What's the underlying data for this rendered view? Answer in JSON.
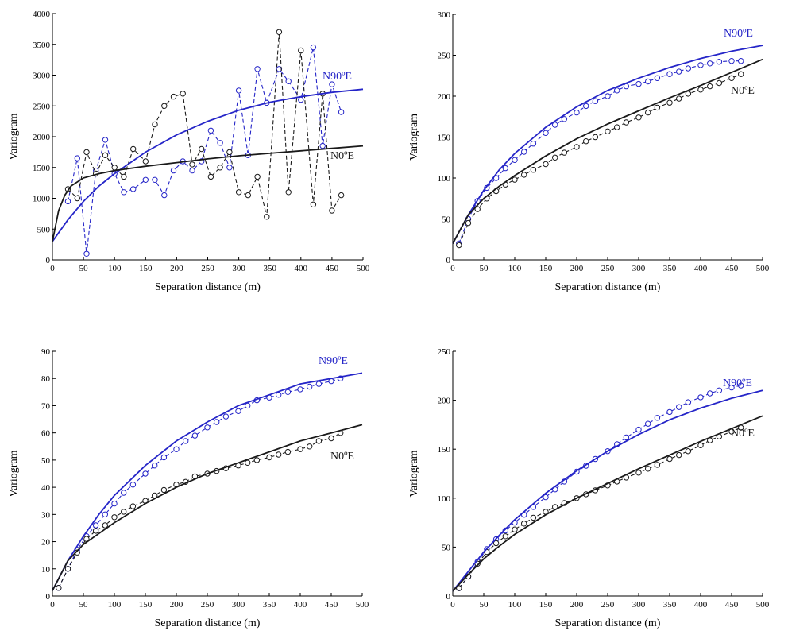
{
  "colors": {
    "n90e": "#2525c8",
    "n0e": "#1a1a1a",
    "axis": "#000000"
  },
  "chart_data": [
    {
      "type": "line",
      "xlabel": "Separation distance (m)",
      "ylabel": "Variogram",
      "xlim": [
        0,
        500
      ],
      "ylim": [
        0,
        4000
      ],
      "xticks": [
        "0",
        "50",
        "100",
        "150",
        "200",
        "250",
        "300",
        "350",
        "400",
        "450",
        "500"
      ],
      "yticks": [
        "0",
        "500",
        "1000",
        "1500",
        "2000",
        "2500",
        "3000",
        "3500",
        "4000"
      ],
      "series": [
        {
          "name": "N90ºE",
          "role": "experimental",
          "color": "#2525c8",
          "marker": "circle",
          "dashed": true,
          "x": [
            25,
            40,
            55,
            70,
            85,
            100,
            115,
            130,
            150,
            165,
            180,
            195,
            210,
            225,
            240,
            255,
            270,
            285,
            300,
            315,
            330,
            345,
            365,
            380,
            400,
            420,
            435,
            450,
            465
          ],
          "y": [
            950,
            1650,
            100,
            1450,
            1950,
            1400,
            1100,
            1150,
            1300,
            1300,
            1050,
            1450,
            1600,
            1450,
            1600,
            2100,
            1900,
            1500,
            2750,
            1700,
            3100,
            2550,
            3100,
            2900,
            2600,
            3450,
            1850,
            2850,
            2400
          ]
        },
        {
          "name": "N0ºE",
          "role": "experimental",
          "color": "#1a1a1a",
          "marker": "circle",
          "dashed": true,
          "x": [
            25,
            40,
            55,
            70,
            85,
            100,
            115,
            130,
            150,
            165,
            180,
            195,
            210,
            225,
            240,
            255,
            270,
            285,
            300,
            315,
            330,
            345,
            365,
            380,
            400,
            420,
            435,
            450,
            465
          ],
          "y": [
            1150,
            1000,
            1750,
            1400,
            1700,
            1500,
            1350,
            1800,
            1600,
            2200,
            2500,
            2650,
            2700,
            1550,
            1800,
            1350,
            1500,
            1750,
            1100,
            1050,
            1350,
            700,
            3700,
            1100,
            3400,
            900,
            2700,
            800,
            1050
          ]
        },
        {
          "name": "N90ºE",
          "role": "model",
          "color": "#2525c8",
          "x": [
            0,
            25,
            50,
            75,
            100,
            150,
            200,
            250,
            300,
            350,
            400,
            450,
            500
          ],
          "y": [
            300,
            650,
            950,
            1200,
            1400,
            1750,
            2030,
            2250,
            2430,
            2560,
            2650,
            2720,
            2770
          ]
        },
        {
          "name": "N0ºE",
          "role": "model",
          "color": "#1a1a1a",
          "x": [
            0,
            10,
            20,
            30,
            50,
            75,
            100,
            150,
            200,
            250,
            300,
            350,
            400,
            450,
            500
          ],
          "y": [
            300,
            800,
            1050,
            1200,
            1330,
            1400,
            1450,
            1520,
            1580,
            1640,
            1690,
            1730,
            1770,
            1810,
            1850
          ]
        }
      ]
    },
    {
      "type": "line",
      "xlabel": "Separation distance (m)",
      "ylabel": "Variogram",
      "xlim": [
        0,
        500
      ],
      "ylim": [
        0,
        300
      ],
      "xticks": [
        "0",
        "50",
        "100",
        "150",
        "200",
        "250",
        "300",
        "350",
        "400",
        "450",
        "500"
      ],
      "yticks": [
        "0",
        "50",
        "100",
        "150",
        "200",
        "250",
        "300"
      ],
      "series": [
        {
          "name": "N90ºE",
          "role": "experimental",
          "color": "#2525c8",
          "marker": "circle",
          "dashed": true,
          "x": [
            10,
            25,
            40,
            55,
            70,
            85,
            100,
            115,
            130,
            150,
            165,
            180,
            200,
            215,
            230,
            250,
            265,
            280,
            300,
            315,
            330,
            350,
            365,
            380,
            400,
            415,
            430,
            450,
            465
          ],
          "y": [
            20,
            50,
            72,
            88,
            100,
            112,
            122,
            132,
            142,
            155,
            165,
            172,
            180,
            188,
            194,
            200,
            207,
            212,
            215,
            218,
            222,
            227,
            230,
            234,
            238,
            240,
            242,
            243,
            243
          ]
        },
        {
          "name": "N0ºE",
          "role": "experimental",
          "color": "#1a1a1a",
          "marker": "circle",
          "dashed": true,
          "x": [
            10,
            25,
            40,
            55,
            70,
            85,
            100,
            115,
            130,
            150,
            165,
            180,
            200,
            215,
            230,
            250,
            265,
            280,
            300,
            315,
            330,
            350,
            365,
            380,
            400,
            415,
            430,
            450,
            465
          ],
          "y": [
            18,
            45,
            62,
            75,
            84,
            92,
            98,
            104,
            110,
            117,
            125,
            131,
            138,
            145,
            150,
            157,
            162,
            168,
            174,
            180,
            186,
            192,
            197,
            203,
            208,
            212,
            216,
            222,
            227
          ]
        },
        {
          "name": "N90ºE",
          "role": "model",
          "color": "#2525c8",
          "x": [
            0,
            25,
            50,
            75,
            100,
            150,
            200,
            250,
            300,
            350,
            400,
            450,
            500
          ],
          "y": [
            20,
            55,
            85,
            110,
            130,
            162,
            187,
            207,
            222,
            235,
            246,
            255,
            262
          ]
        },
        {
          "name": "N0ºE",
          "role": "model",
          "color": "#1a1a1a",
          "x": [
            0,
            25,
            50,
            75,
            100,
            150,
            200,
            250,
            300,
            350,
            400,
            450,
            500
          ],
          "y": [
            20,
            55,
            75,
            90,
            103,
            127,
            148,
            166,
            182,
            198,
            213,
            229,
            245
          ]
        }
      ]
    },
    {
      "type": "line",
      "xlabel": "Separation distance (m)",
      "ylabel": "Variogram",
      "xlim": [
        0,
        500
      ],
      "ylim": [
        0,
        90
      ],
      "xticks": [
        "0",
        "50",
        "100",
        "150",
        "200",
        "250",
        "300",
        "350",
        "400",
        "450",
        "500"
      ],
      "yticks": [
        "0",
        "10",
        "20",
        "30",
        "40",
        "50",
        "60",
        "70",
        "80",
        "90"
      ],
      "series": [
        {
          "name": "N90ºE",
          "role": "experimental",
          "color": "#2525c8",
          "marker": "circle",
          "dashed": true,
          "x": [
            10,
            25,
            40,
            55,
            70,
            85,
            100,
            115,
            130,
            150,
            165,
            180,
            200,
            215,
            230,
            250,
            265,
            280,
            300,
            315,
            330,
            350,
            365,
            380,
            400,
            415,
            430,
            450,
            465
          ],
          "y": [
            3,
            10,
            17,
            22,
            26,
            30,
            34,
            38,
            41,
            45,
            48,
            51,
            54,
            57,
            59,
            62,
            64,
            66,
            68,
            70,
            72,
            73,
            74,
            75,
            76,
            77,
            78,
            79,
            80
          ]
        },
        {
          "name": "N0ºE",
          "role": "experimental",
          "color": "#1a1a1a",
          "marker": "circle",
          "dashed": true,
          "x": [
            10,
            25,
            40,
            55,
            70,
            85,
            100,
            115,
            130,
            150,
            165,
            180,
            200,
            215,
            230,
            250,
            265,
            280,
            300,
            315,
            330,
            350,
            365,
            380,
            400,
            415,
            430,
            450,
            465
          ],
          "y": [
            3,
            10,
            16,
            21,
            24,
            26,
            29,
            31,
            33,
            35,
            37,
            39,
            41,
            42,
            44,
            45,
            46,
            47,
            48,
            49,
            50,
            51,
            52,
            53,
            54,
            55,
            57,
            58,
            60
          ]
        },
        {
          "name": "N90ºE",
          "role": "model",
          "color": "#2525c8",
          "x": [
            0,
            25,
            50,
            75,
            100,
            150,
            200,
            250,
            300,
            350,
            400,
            450,
            500
          ],
          "y": [
            2,
            13,
            22,
            30,
            37,
            48,
            57,
            64,
            70,
            74,
            78,
            80,
            82
          ]
        },
        {
          "name": "N0ºE",
          "role": "model",
          "color": "#1a1a1a",
          "x": [
            0,
            25,
            50,
            75,
            100,
            150,
            200,
            250,
            300,
            350,
            400,
            450,
            500
          ],
          "y": [
            2,
            13,
            19,
            23,
            27,
            34,
            40,
            45,
            49,
            53,
            57,
            60,
            63
          ]
        }
      ]
    },
    {
      "type": "line",
      "xlabel": "Separation distance (m)",
      "ylabel": "Variogram",
      "xlim": [
        0,
        500
      ],
      "ylim": [
        0,
        250
      ],
      "xticks": [
        "0",
        "50",
        "100",
        "150",
        "200",
        "250",
        "300",
        "350",
        "400",
        "450",
        "500"
      ],
      "yticks": [
        "0",
        "50",
        "100",
        "150",
        "200",
        "250"
      ],
      "series": [
        {
          "name": "N90ºE",
          "role": "experimental",
          "color": "#2525c8",
          "marker": "circle",
          "dashed": true,
          "x": [
            10,
            25,
            40,
            55,
            70,
            85,
            100,
            115,
            130,
            150,
            165,
            180,
            200,
            215,
            230,
            250,
            265,
            280,
            300,
            315,
            330,
            350,
            365,
            380,
            400,
            415,
            430,
            450,
            465
          ],
          "y": [
            8,
            20,
            35,
            48,
            58,
            67,
            75,
            83,
            91,
            101,
            109,
            117,
            127,
            133,
            140,
            148,
            155,
            162,
            170,
            176,
            182,
            188,
            193,
            198,
            203,
            207,
            210,
            213,
            215
          ]
        },
        {
          "name": "N0ºE",
          "role": "experimental",
          "color": "#1a1a1a",
          "marker": "circle",
          "dashed": true,
          "x": [
            10,
            25,
            40,
            55,
            70,
            85,
            100,
            115,
            130,
            150,
            165,
            180,
            200,
            215,
            230,
            250,
            265,
            280,
            300,
            315,
            330,
            350,
            365,
            380,
            400,
            415,
            430,
            450,
            465
          ],
          "y": [
            8,
            20,
            33,
            45,
            54,
            61,
            68,
            74,
            80,
            86,
            91,
            95,
            100,
            104,
            108,
            113,
            117,
            121,
            126,
            130,
            134,
            140,
            144,
            148,
            154,
            159,
            163,
            168,
            172
          ]
        },
        {
          "name": "N90ºE",
          "role": "model",
          "color": "#2525c8",
          "x": [
            0,
            25,
            50,
            75,
            100,
            150,
            200,
            250,
            300,
            350,
            400,
            450,
            500
          ],
          "y": [
            5,
            25,
            45,
            62,
            78,
            105,
            128,
            148,
            165,
            180,
            192,
            202,
            210
          ]
        },
        {
          "name": "N0ºE",
          "role": "model",
          "color": "#1a1a1a",
          "x": [
            0,
            25,
            50,
            75,
            100,
            150,
            200,
            250,
            300,
            350,
            400,
            450,
            500
          ],
          "y": [
            5,
            22,
            38,
            51,
            63,
            83,
            100,
            115,
            130,
            144,
            158,
            171,
            184
          ]
        }
      ]
    }
  ]
}
